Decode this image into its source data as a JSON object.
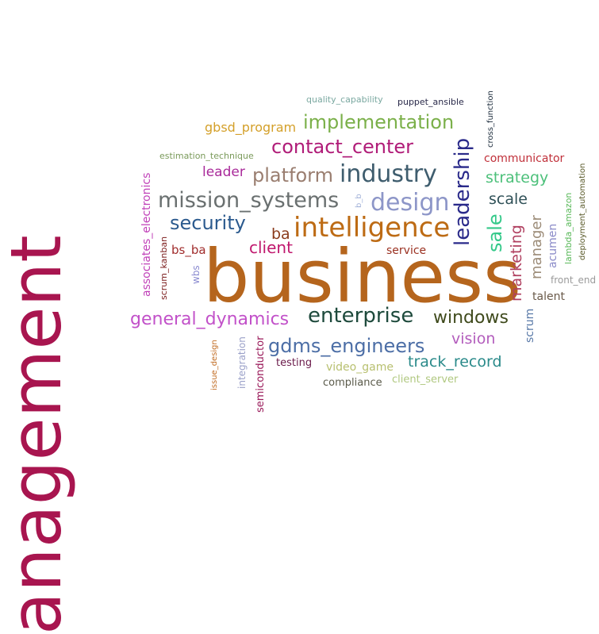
{
  "words": [
    {
      "text": "anagement",
      "color": "#a8154f"
    },
    {
      "text": "business",
      "color": "#b5651d"
    },
    {
      "text": "intelligence",
      "color": "#bd6b14"
    },
    {
      "text": "industry",
      "color": "#3f5d6e"
    },
    {
      "text": "design",
      "color": "#8d96c8"
    },
    {
      "text": "leadership",
      "color": "#2a2a8a"
    },
    {
      "text": "mission_systems",
      "color": "#6a7070"
    },
    {
      "text": "enterprise",
      "color": "#1e4a3c"
    },
    {
      "text": "implementation",
      "color": "#7bb04a"
    },
    {
      "text": "contact_center",
      "color": "#b01c78"
    },
    {
      "text": "platform",
      "color": "#9a7e70"
    },
    {
      "text": "security",
      "color": "#2b5a8e"
    },
    {
      "text": "general_dynamics",
      "color": "#c251c9"
    },
    {
      "text": "gdms_engineers",
      "color": "#4c6ea6"
    },
    {
      "text": "windows",
      "color": "#3f4a1c"
    },
    {
      "text": "sale",
      "color": "#35c98a"
    },
    {
      "text": "strategy",
      "color": "#4cc07a"
    },
    {
      "text": "scale",
      "color": "#2f5057"
    },
    {
      "text": "marketing",
      "color": "#b04060"
    },
    {
      "text": "manager",
      "color": "#9c8c78"
    },
    {
      "text": "vision",
      "color": "#b35dbd"
    },
    {
      "text": "track_record",
      "color": "#2a8a8a"
    },
    {
      "text": "client",
      "color": "#c0186e"
    },
    {
      "text": "ba",
      "color": "#8a3b1b"
    },
    {
      "text": "leader",
      "color": "#a92a9a"
    },
    {
      "text": "gbsd_program",
      "color": "#d4a02a"
    },
    {
      "text": "communicator",
      "color": "#c0303a"
    },
    {
      "text": "acumen",
      "color": "#8a8ac8"
    },
    {
      "text": "talent",
      "color": "#6a5a4a"
    },
    {
      "text": "front_end",
      "color": "#9a9a9a"
    },
    {
      "text": "scrum",
      "color": "#5a7aa8"
    },
    {
      "text": "service",
      "color": "#9a3020"
    },
    {
      "text": "bs_ba",
      "color": "#a02c2c"
    },
    {
      "text": "associates_electronics",
      "color": "#c040b8"
    },
    {
      "text": "scrum_kanban",
      "color": "#7a1a1a"
    },
    {
      "text": "wbs",
      "color": "#8a8ad0"
    },
    {
      "text": "b_b",
      "color": "#a0b0d8"
    },
    {
      "text": "estimation_technique",
      "color": "#7a9a5a"
    },
    {
      "text": "quality_capability",
      "color": "#7aa8a0"
    },
    {
      "text": "puppet_ansible",
      "color": "#2a2a4a"
    },
    {
      "text": "cross_function",
      "color": "#1a2a3a"
    },
    {
      "text": "lambda_amazon",
      "color": "#58b858"
    },
    {
      "text": "deployment_automation",
      "color": "#5a5a2a"
    },
    {
      "text": "issue_design",
      "color": "#c06a20"
    },
    {
      "text": "integration",
      "color": "#9aa0c8"
    },
    {
      "text": "semiconductor",
      "color": "#9a1a5a"
    },
    {
      "text": "testing",
      "color": "#6a1a4a"
    },
    {
      "text": "video_game",
      "color": "#b8c070"
    },
    {
      "text": "compliance",
      "color": "#5a5a4a"
    },
    {
      "text": "client_server",
      "color": "#b0c880"
    }
  ]
}
